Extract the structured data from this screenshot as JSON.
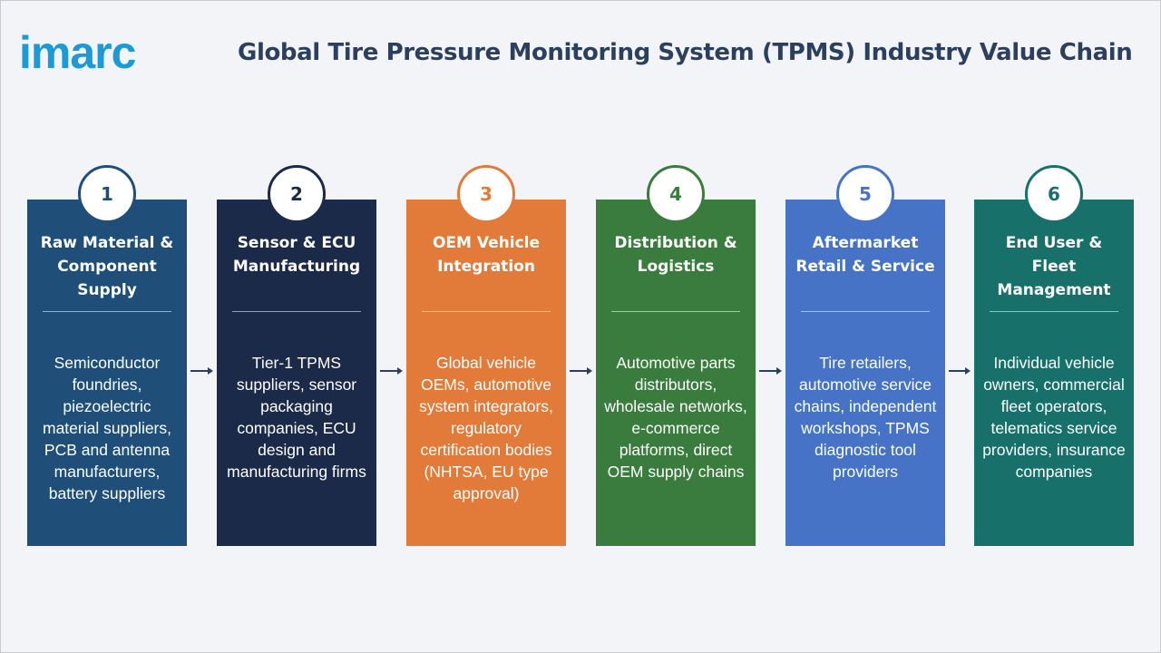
{
  "logo": "imarc",
  "title": "Global Tire Pressure Monitoring System (TPMS) Industry Value Chain",
  "stages": [
    {
      "number": "1",
      "title": "Raw Material & Component Supply",
      "description": "Semiconductor foundries, piezoelectric material suppliers, PCB and antenna manufacturers, battery suppliers",
      "color": "#1f4e79"
    },
    {
      "number": "2",
      "title": "Sensor & ECU Manufacturing",
      "description": "Tier-1 TPMS suppliers, sensor packaging companies, ECU design and manufacturing firms",
      "color": "#1c2a4a"
    },
    {
      "number": "3",
      "title": "OEM Vehicle Integration",
      "description": "Global vehicle OEMs, automotive system integrators, regulatory certification bodies (NHTSA, EU type approval)",
      "color": "#e27b3a"
    },
    {
      "number": "4",
      "title": "Distribution & Logistics",
      "description": "Automotive parts distributors, wholesale networks, e-commerce platforms, direct OEM supply chains",
      "color": "#3a7c3d"
    },
    {
      "number": "5",
      "title": "Aftermarket Retail & Service",
      "description": "Tire retailers, automotive service chains, independent workshops, TPMS diagnostic tool providers",
      "color": "#4673c6"
    },
    {
      "number": "6",
      "title": "End User & Fleet Management",
      "description": "Individual vehicle owners, commercial fleet operators, telematics service providers, insurance companies",
      "color": "#17716a"
    }
  ]
}
